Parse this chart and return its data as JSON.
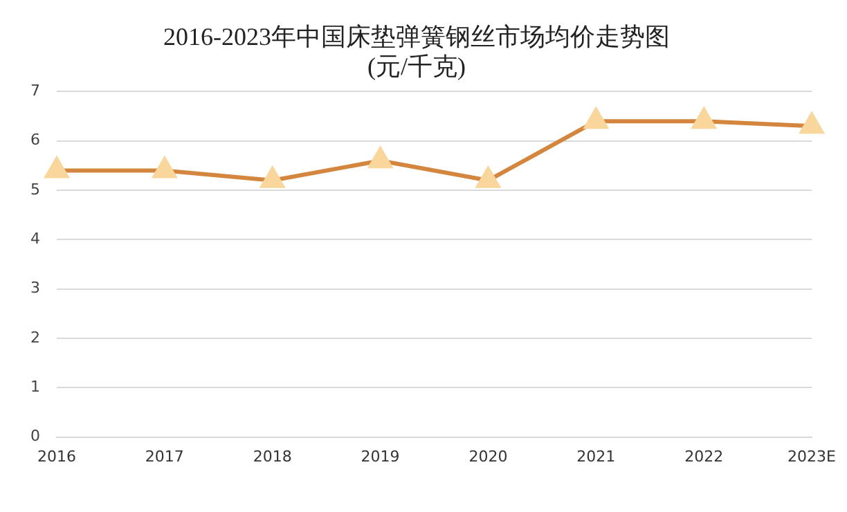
{
  "chart_data": {
    "type": "line",
    "title": [
      "2016-2023年中国床垫弹簧钢丝市场均价走势图",
      "(元/千克)"
    ],
    "categories": [
      "2016",
      "2017",
      "2018",
      "2019",
      "2020",
      "2021",
      "2022",
      "2023E"
    ],
    "series": [
      {
        "color": "#d4863e",
        "colors": [
          "#f9d69b",
          "#f9d69b",
          "#f9d69b",
          "#f9d69b",
          "#f9d69b",
          "#f9d69b",
          "#f9d69b",
          "#f9d69b"
        ],
        "values": [
          5.4,
          5.4,
          5.2,
          5.6,
          5.2,
          6.4,
          6.4,
          6.3
        ]
      }
    ],
    "ylim": [
      0,
      7
    ],
    "yticks": [
      0,
      1,
      2,
      3,
      4,
      5,
      6,
      7
    ],
    "grid": "y",
    "legend": false,
    "marker": "triangle",
    "line_style": "solid"
  }
}
